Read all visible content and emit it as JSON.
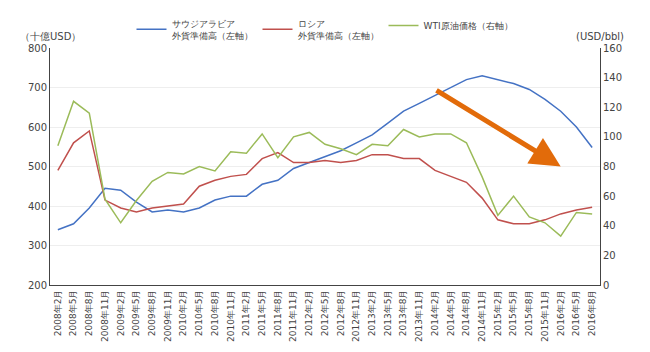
{
  "chart_data": {
    "type": "line",
    "ylabel": "（十億USD）",
    "y2label": "(USD/bbl)",
    "categories": [
      "2008年2月",
      "2008年5月",
      "2008年8月",
      "2008年11月",
      "2009年2月",
      "2009年5月",
      "2009年8月",
      "2009年11月",
      "2010年2月",
      "2010年5月",
      "2010年8月",
      "2010年11月",
      "2011年2月",
      "2011年5月",
      "2011年8月",
      "2011年11月",
      "2012年2月",
      "2012年5月",
      "2012年8月",
      "2012年11月",
      "2013年2月",
      "2013年5月",
      "2013年8月",
      "2013年11月",
      "2014年2月",
      "2014年5月",
      "2014年8月",
      "2014年11月",
      "2015年2月",
      "2015年5月",
      "2015年8月",
      "2015年11月",
      "2016年2月",
      "2016年5月",
      "2016年8月"
    ],
    "series": [
      {
        "name": "サウジアラビア\n外貨準備高（左軸）",
        "color": "#4472c4",
        "values": [
          340,
          355,
          395,
          445,
          440,
          410,
          385,
          390,
          385,
          395,
          415,
          425,
          425,
          455,
          465,
          495,
          510,
          525,
          540,
          560,
          580,
          610,
          640,
          660,
          680,
          700,
          720,
          730,
          720,
          710,
          695,
          670,
          640,
          600,
          548
        ]
      },
      {
        "name": "ロシア\n外貨準備高（左軸）",
        "color": "#c0504d",
        "values": [
          490,
          560,
          590,
          415,
          395,
          385,
          395,
          400,
          405,
          450,
          465,
          475,
          480,
          520,
          535,
          510,
          510,
          515,
          510,
          515,
          530,
          530,
          520,
          520,
          490,
          475,
          460,
          420,
          365,
          355,
          355,
          365,
          380,
          390,
          397
        ]
      },
      {
        "name": "WTI原油価格（右軸）",
        "color": "#9bbb59",
        "axis": "y2",
        "values": [
          94,
          124,
          116,
          58,
          42,
          57,
          70,
          76,
          75,
          80,
          77,
          90,
          89,
          102,
          86,
          100,
          103,
          95,
          92,
          88,
          95,
          94,
          105,
          100,
          102,
          102,
          96,
          73,
          47,
          60,
          46,
          42,
          33,
          49,
          48
        ]
      }
    ],
    "ylim": [
      200.0,
      800.0
    ],
    "yticks": [
      200,
      300,
      400,
      500,
      600,
      700,
      800
    ],
    "y2lim": [
      0.0,
      160.0
    ],
    "y2ticks": [
      0,
      20,
      40,
      60,
      80,
      100,
      120,
      140,
      160
    ],
    "annotations": [
      {
        "x_start": "2014年2月",
        "y_start": 695,
        "x_end": "2016年2月",
        "y_end": 500,
        "color": "#e26b0a"
      }
    ],
    "grid": true,
    "legend": "top"
  }
}
